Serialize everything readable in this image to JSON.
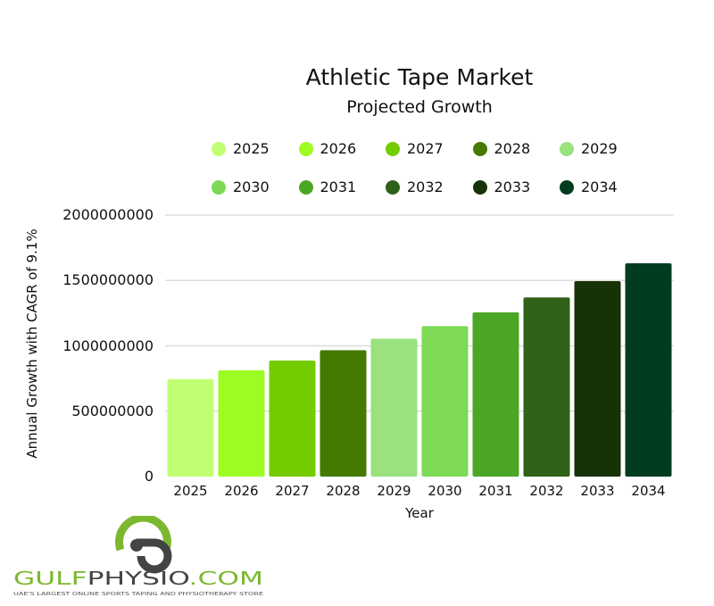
{
  "chart_data": {
    "type": "bar",
    "title": "Athletic Tape Market",
    "subtitle": "Projected Growth",
    "xlabel": "Year",
    "ylabel": "Annual Growth with CAGR of 9.1%",
    "categories": [
      "2025",
      "2026",
      "2027",
      "2028",
      "2029",
      "2030",
      "2031",
      "2032",
      "2033",
      "2034"
    ],
    "values": [
      745000000,
      813000000,
      887000000,
      967000000,
      1055000000,
      1151000000,
      1256000000,
      1370000000,
      1495000000,
      1631000000
    ],
    "colors": [
      "#c1ff72",
      "#9dfc22",
      "#74cc00",
      "#457a00",
      "#9ae27e",
      "#7ed957",
      "#4ca626",
      "#2f6118",
      "#183208",
      "#003d20"
    ],
    "ylim": [
      0,
      2000000000
    ],
    "yticks": [
      "0",
      "500000000",
      "1000000000",
      "1500000000",
      "2000000000"
    ],
    "grid": true,
    "legend": "top"
  },
  "logo": {
    "name": "GULFPHYSIO.COM",
    "tagline": "UAE'S LARGEST ONLINE SPORTS TAPING AND PHYSIOTHERAPY STORE"
  }
}
